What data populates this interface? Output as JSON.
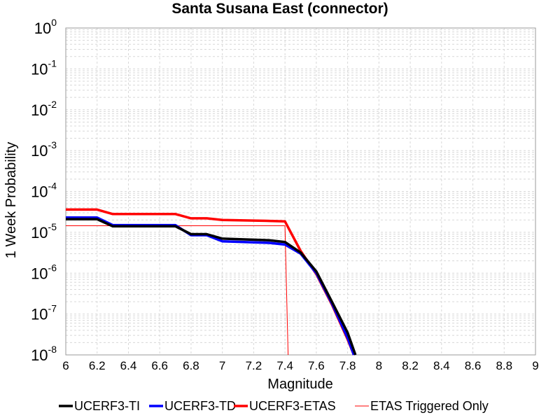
{
  "chart_data": {
    "type": "line",
    "title": "Santa Susana East (connector)",
    "xlabel": "Magnitude",
    "ylabel": "1 Week Probability",
    "xlim": [
      6,
      9
    ],
    "ylim": [
      1e-08,
      1
    ],
    "yscale": "log",
    "grid": true,
    "legend_position": "bottom",
    "xticks": [
      6,
      6.2,
      6.4,
      6.6,
      6.8,
      7,
      7.2,
      7.4,
      7.6,
      7.8,
      8,
      8.2,
      8.4,
      8.6,
      8.8,
      9
    ],
    "xtick_labels": [
      "6",
      "6.2",
      "6.4",
      "6.6",
      "6.8",
      "7",
      "7.2",
      "7.4",
      "7.6",
      "7.8",
      "8",
      "8.2",
      "8.4",
      "8.6",
      "8.8",
      "9"
    ],
    "yticks": [
      {
        "value": 1,
        "base": "10",
        "exp": "0"
      },
      {
        "value": 0.1,
        "base": "10",
        "exp": "-1"
      },
      {
        "value": 0.01,
        "base": "10",
        "exp": "-2"
      },
      {
        "value": 0.001,
        "base": "10",
        "exp": "-3"
      },
      {
        "value": 0.0001,
        "base": "10",
        "exp": "-4"
      },
      {
        "value": 1e-05,
        "base": "10",
        "exp": "-5"
      },
      {
        "value": 1e-06,
        "base": "10",
        "exp": "-6"
      },
      {
        "value": 1e-07,
        "base": "10",
        "exp": "-7"
      },
      {
        "value": 1e-08,
        "base": "10",
        "exp": "-8"
      }
    ],
    "series": [
      {
        "name": "UCERF3-TI",
        "color": "#000000",
        "width": 3.5,
        "x": [
          6.0,
          6.2,
          6.3,
          6.7,
          6.8,
          6.9,
          7.0,
          7.3,
          7.4,
          7.5,
          7.6,
          7.7,
          7.8,
          7.85
        ],
        "y": [
          2.1e-05,
          2.1e-05,
          1.4e-05,
          1.4e-05,
          9e-06,
          9e-06,
          7e-06,
          6.4e-06,
          5.8e-06,
          3.2e-06,
          1.1e-06,
          2e-07,
          3.5e-08,
          1e-08
        ]
      },
      {
        "name": "UCERF3-TD",
        "color": "#0000ff",
        "width": 3.5,
        "x": [
          6.0,
          6.2,
          6.3,
          6.7,
          6.8,
          6.9,
          7.0,
          7.3,
          7.4,
          7.5,
          7.6,
          7.7,
          7.8,
          7.84
        ],
        "y": [
          2.3e-05,
          2.3e-05,
          1.5e-05,
          1.5e-05,
          8.5e-06,
          8.5e-06,
          6e-06,
          5.5e-06,
          5e-06,
          3e-06,
          1e-06,
          1.8e-07,
          2.6e-08,
          1e-08
        ]
      },
      {
        "name": "UCERF3-ETAS",
        "color": "#ff0000",
        "width": 3.5,
        "x": [
          6.0,
          6.2,
          6.3,
          6.7,
          6.8,
          6.9,
          7.0,
          7.3,
          7.4,
          7.5,
          7.6,
          7.7,
          7.8,
          7.84
        ],
        "y": [
          3.6e-05,
          3.6e-05,
          2.8e-05,
          2.8e-05,
          2.2e-05,
          2.2e-05,
          2e-05,
          1.9e-05,
          1.85e-05,
          3.5e-06,
          9.5e-07,
          1.7e-07,
          2.4e-08,
          1e-08
        ]
      },
      {
        "name": "ETAS Triggered Only",
        "color": "#ff0000",
        "width": 1,
        "x": [
          6.0,
          7.4,
          7.42
        ],
        "y": [
          1.45e-05,
          1.45e-05,
          1e-08
        ]
      }
    ]
  }
}
